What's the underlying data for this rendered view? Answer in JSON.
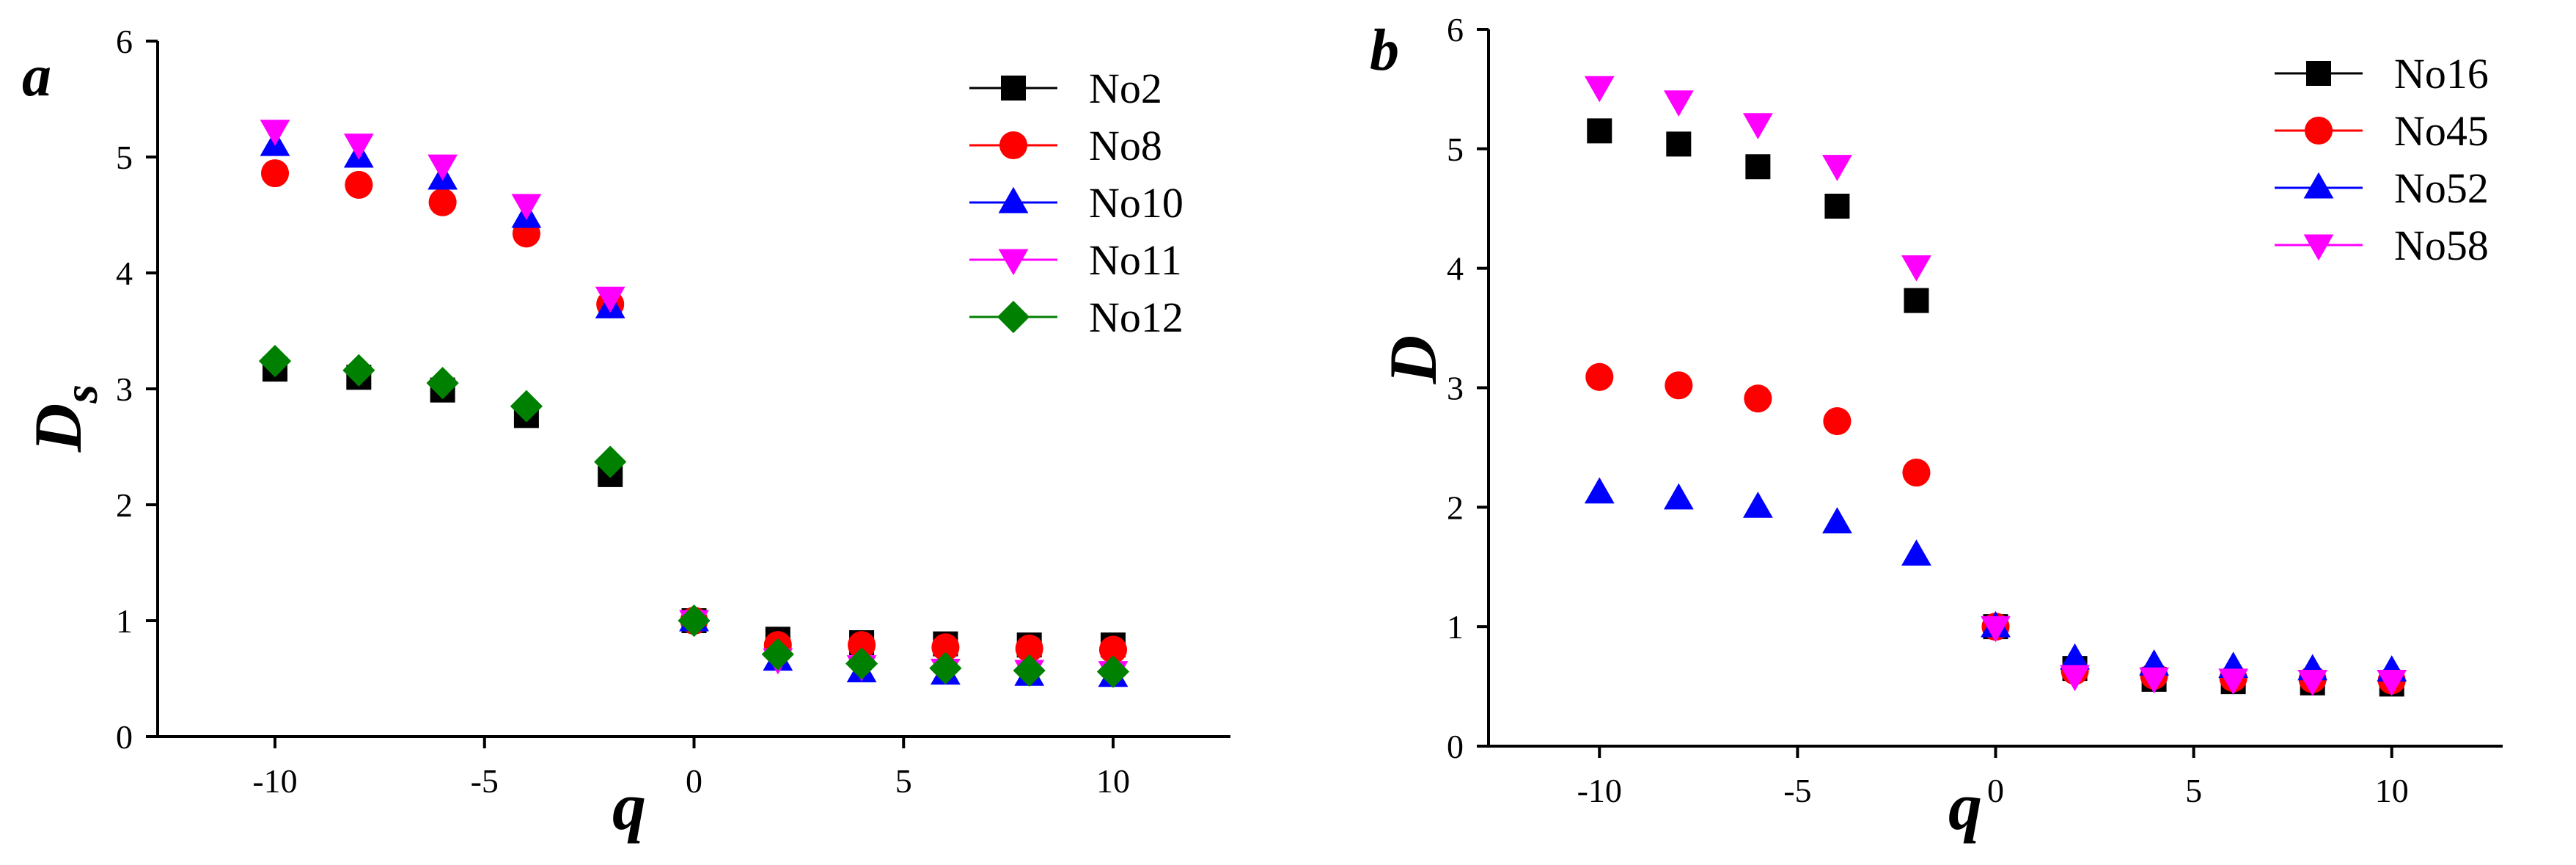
{
  "chart_data": [
    {
      "panel": "a",
      "type": "scatter",
      "title": "",
      "xlabel": "q",
      "ylabel": "D",
      "ylabel_sub": "s",
      "xlim": [
        -12.8,
        12.8
      ],
      "ylim": [
        0,
        6
      ],
      "xticks": [
        -10,
        -5,
        0,
        5,
        10
      ],
      "xtick_labels": [
        "-10",
        "-5",
        "0",
        "5",
        "10"
      ],
      "yticks": [
        0,
        1,
        2,
        3,
        4,
        5,
        6
      ],
      "ytick_labels": [
        "0",
        "1",
        "2",
        "3",
        "4",
        "5",
        "6"
      ],
      "legend_position": "top-right",
      "x": [
        -10,
        -8,
        -6,
        -4,
        -2,
        0,
        2,
        4,
        6,
        8,
        10
      ],
      "series": [
        {
          "name": "No2",
          "marker": "square",
          "color": "#000000",
          "values": [
            3.17,
            3.1,
            2.99,
            2.77,
            2.26,
            1.0,
            0.84,
            0.81,
            0.8,
            0.79,
            0.79
          ]
        },
        {
          "name": "No8",
          "marker": "circle",
          "color": "#ff0000",
          "values": [
            4.86,
            4.76,
            4.61,
            4.34,
            3.73,
            1.0,
            0.79,
            0.79,
            0.77,
            0.76,
            0.75
          ]
        },
        {
          "name": "No10",
          "marker": "triangle-up",
          "color": "#0000ff",
          "values": [
            5.1,
            5.0,
            4.81,
            4.48,
            3.7,
            1.0,
            0.66,
            0.56,
            0.54,
            0.53,
            0.52
          ]
        },
        {
          "name": "No11",
          "marker": "triangle-down",
          "color": "#ff00ff",
          "values": [
            5.23,
            5.11,
            4.93,
            4.59,
            3.79,
            1.0,
            0.67,
            0.61,
            0.58,
            0.57,
            0.56
          ]
        },
        {
          "name": "No12",
          "marker": "diamond",
          "color": "#008000",
          "values": [
            3.24,
            3.16,
            3.05,
            2.85,
            2.37,
            1.0,
            0.71,
            0.63,
            0.59,
            0.57,
            0.56
          ]
        }
      ]
    },
    {
      "panel": "b",
      "type": "scatter",
      "title": "",
      "xlabel": "q",
      "ylabel": "D",
      "ylabel_sub": "",
      "xlim": [
        -12.8,
        12.8
      ],
      "ylim": [
        0,
        6
      ],
      "xticks": [
        -10,
        -5,
        0,
        5,
        10
      ],
      "xtick_labels": [
        "-10",
        "-5",
        "0",
        "5",
        "10"
      ],
      "yticks": [
        0,
        1,
        2,
        3,
        4,
        5,
        6
      ],
      "ytick_labels": [
        "0",
        "1",
        "2",
        "3",
        "4",
        "5",
        "6"
      ],
      "legend_position": "top-right",
      "x": [
        -10,
        -8,
        -6,
        -4,
        -2,
        0,
        2,
        4,
        6,
        8,
        10
      ],
      "series": [
        {
          "name": "No16",
          "marker": "square",
          "color": "#000000",
          "values": [
            5.15,
            5.04,
            4.85,
            4.52,
            3.73,
            1.0,
            0.65,
            0.56,
            0.54,
            0.53,
            0.52
          ]
        },
        {
          "name": "No45",
          "marker": "circle",
          "color": "#ff0000",
          "values": [
            3.09,
            3.02,
            2.91,
            2.72,
            2.29,
            1.0,
            0.63,
            0.59,
            0.57,
            0.56,
            0.55
          ]
        },
        {
          "name": "No52",
          "marker": "triangle-up",
          "color": "#0000ff",
          "values": [
            2.12,
            2.07,
            2.0,
            1.87,
            1.6,
            1.0,
            0.73,
            0.68,
            0.66,
            0.64,
            0.63
          ]
        },
        {
          "name": "No58",
          "marker": "triangle-down",
          "color": "#ff00ff",
          "values": [
            5.52,
            5.4,
            5.21,
            4.86,
            4.02,
            1.0,
            0.59,
            0.57,
            0.56,
            0.55,
            0.55
          ]
        }
      ]
    }
  ]
}
